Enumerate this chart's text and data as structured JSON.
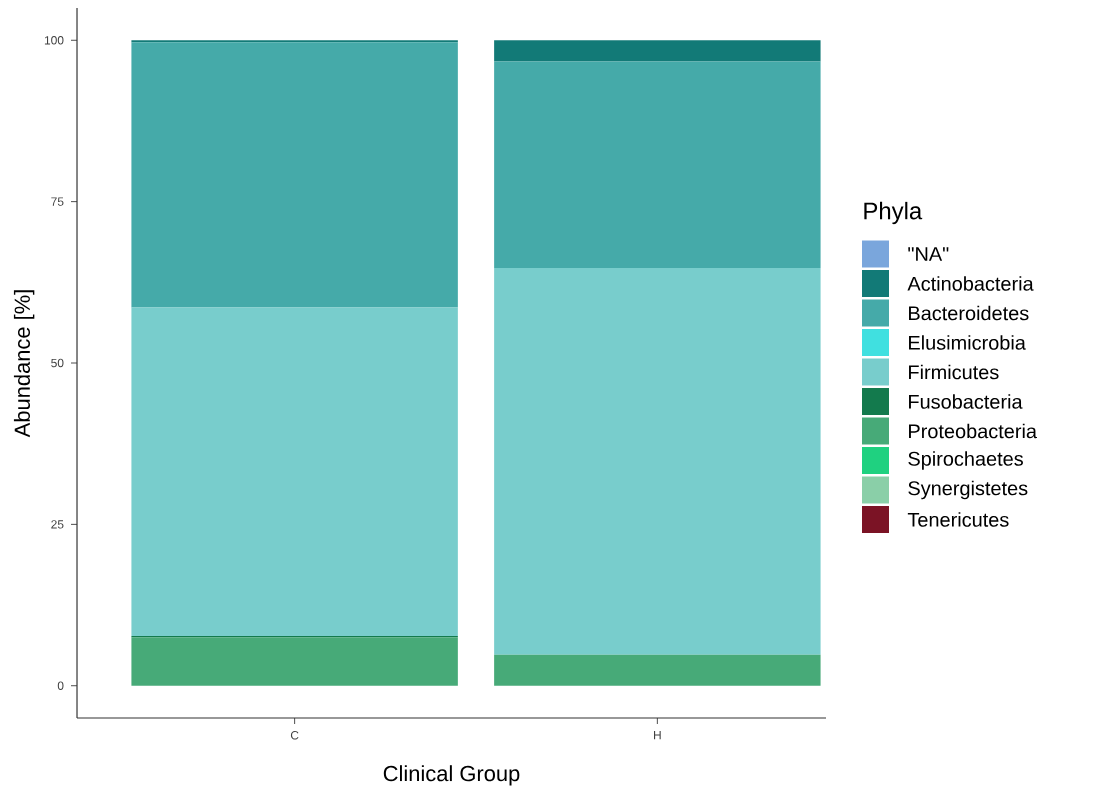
{
  "chart_data": {
    "type": "bar",
    "stacked": true,
    "xlabel": "Clinical Group",
    "ylabel": "Abundance [%]",
    "legend_title": "Phyla",
    "legend": "right",
    "categories": [
      "C",
      "H"
    ],
    "ylim": [
      -5,
      105
    ],
    "yticks": [
      0,
      25,
      50,
      75,
      100
    ],
    "series": [
      {
        "name": "Tenericutes",
        "color": "#7b1325",
        "values": [
          0,
          0
        ]
      },
      {
        "name": "Synergistetes",
        "color": "#8acfa8",
        "values": [
          0,
          0
        ]
      },
      {
        "name": "Spirochaetes",
        "color": "#1fd180",
        "values": [
          0,
          0
        ]
      },
      {
        "name": "Proteobacteria",
        "color": "#47aa78",
        "values": [
          7.5,
          4.8
        ]
      },
      {
        "name": "Fusobacteria",
        "color": "#137a4d",
        "values": [
          0.2,
          0
        ]
      },
      {
        "name": "Firmicutes",
        "color": "#78cdcc",
        "values": [
          50.9,
          59.9
        ]
      },
      {
        "name": "Elusimicrobia",
        "color": "#40e0e0",
        "values": [
          0,
          0
        ]
      },
      {
        "name": "Bacteroidetes",
        "color": "#45aaa9",
        "values": [
          41.1,
          32.0
        ]
      },
      {
        "name": "Actinobacteria",
        "color": "#127a77",
        "values": [
          0.3,
          3.3
        ]
      },
      {
        "name": "\"NA\"",
        "color": "#7aa6dc",
        "values": [
          0,
          0
        ]
      }
    ]
  }
}
